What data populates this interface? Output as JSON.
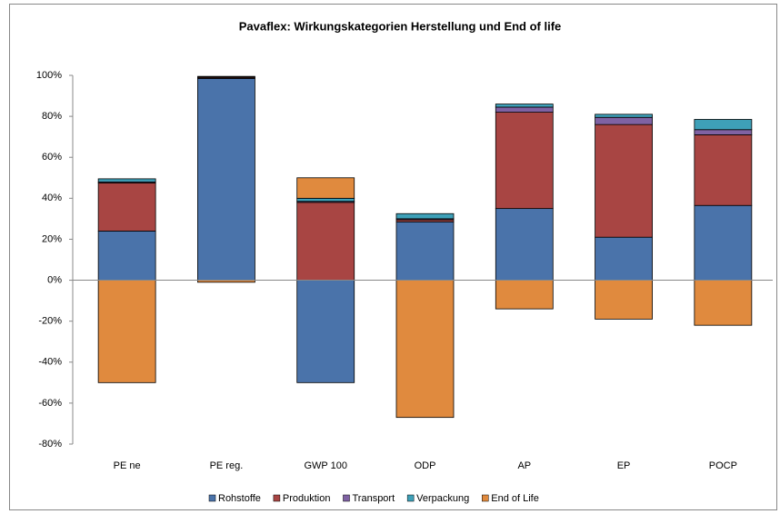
{
  "chart_data": {
    "type": "stacked_bar",
    "title": "Pavaflex: Wirkungskategorien Herstellung und End of life",
    "categories": [
      "PE ne",
      "PE reg.",
      "GWP 100",
      "ODP",
      "AP",
      "EP",
      "POCP"
    ],
    "series": [
      {
        "name": "Rohstoffe",
        "color": "#4a73aa",
        "values": [
          24,
          98.5,
          -50,
          28.5,
          35,
          21,
          36.5
        ]
      },
      {
        "name": "Produktion",
        "color": "#a84543",
        "values": [
          23.5,
          0.5,
          38,
          1,
          47,
          55,
          34.5
        ]
      },
      {
        "name": "Transport",
        "color": "#7f62a3",
        "values": [
          0.5,
          0.2,
          0.5,
          0.5,
          2.5,
          3.5,
          2.5
        ]
      },
      {
        "name": "Verpackung",
        "color": "#3ea0b8",
        "values": [
          1.5,
          0.3,
          1.5,
          2.5,
          1.5,
          1.5,
          5
        ]
      },
      {
        "name": "End of Life",
        "color": "#e08a3e",
        "values": [
          -50,
          -1,
          10,
          -67,
          -14,
          -19,
          -22
        ]
      }
    ],
    "ylim": [
      -80,
      100
    ],
    "yticks": [
      {
        "value": -80,
        "label": "-80%"
      },
      {
        "value": -60,
        "label": "-60%"
      },
      {
        "value": -40,
        "label": "-40%"
      },
      {
        "value": -20,
        "label": "-20%"
      },
      {
        "value": 0,
        "label": "0%"
      },
      {
        "value": 20,
        "label": "20%"
      },
      {
        "value": 40,
        "label": "40%"
      },
      {
        "value": 60,
        "label": "60%"
      },
      {
        "value": 80,
        "label": "80%"
      },
      {
        "value": 100,
        "label": "100%"
      }
    ],
    "grid": false,
    "legend": "bottom"
  }
}
